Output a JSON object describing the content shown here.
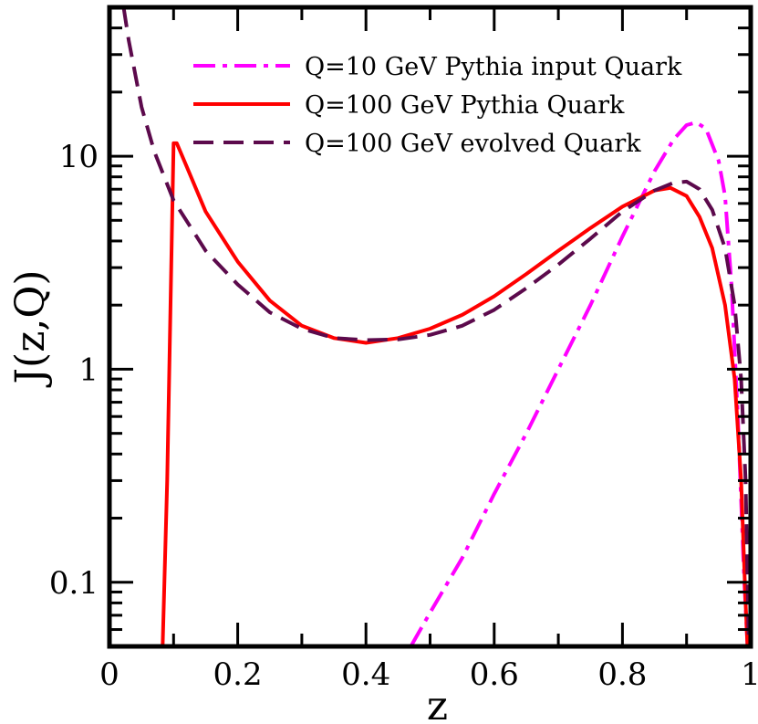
{
  "chart_data": {
    "type": "line",
    "title": "",
    "xlabel": "z",
    "ylabel": "J(z,Q)",
    "xlim": [
      0,
      1
    ],
    "ylim": [
      0.05,
      50
    ],
    "yscale": "log",
    "grid": false,
    "legend_position": "top-right",
    "x_ticks": [
      0,
      0.2,
      0.4,
      0.6,
      0.8,
      1
    ],
    "x_tick_labels": [
      "0",
      "0.2",
      "0.4",
      "0.6",
      "0.8",
      "1"
    ],
    "y_ticks": [
      0.1,
      1,
      10
    ],
    "y_tick_labels": [
      "0.1",
      "1",
      "10"
    ],
    "series": [
      {
        "name": "Q=10 GeV Pythia input Quark",
        "color": "#ff00ff",
        "style": "dashdot",
        "points": [
          [
            0.47,
            0.05
          ],
          [
            0.5,
            0.072
          ],
          [
            0.55,
            0.13
          ],
          [
            0.6,
            0.26
          ],
          [
            0.65,
            0.5
          ],
          [
            0.7,
            1.0
          ],
          [
            0.75,
            2.0
          ],
          [
            0.8,
            4.2
          ],
          [
            0.85,
            8.5
          ],
          [
            0.88,
            12
          ],
          [
            0.9,
            14
          ],
          [
            0.915,
            14.4
          ],
          [
            0.93,
            13.5
          ],
          [
            0.95,
            9.5
          ],
          [
            0.96,
            6.5
          ],
          [
            0.97,
            2.5
          ],
          [
            0.98,
            0.6
          ],
          [
            0.99,
            0.1
          ],
          [
            0.995,
            0.05
          ]
        ]
      },
      {
        "name": "Q=100 GeV Pythia Quark",
        "color": "#ff0000",
        "style": "solid",
        "points": [
          [
            0.083,
            0.05
          ],
          [
            0.09,
            0.3
          ],
          [
            0.1,
            11.5
          ],
          [
            0.105,
            11.5
          ],
          [
            0.12,
            9
          ],
          [
            0.15,
            5.5
          ],
          [
            0.2,
            3.2
          ],
          [
            0.25,
            2.1
          ],
          [
            0.3,
            1.6
          ],
          [
            0.35,
            1.4
          ],
          [
            0.4,
            1.33
          ],
          [
            0.45,
            1.4
          ],
          [
            0.5,
            1.55
          ],
          [
            0.55,
            1.8
          ],
          [
            0.6,
            2.2
          ],
          [
            0.65,
            2.8
          ],
          [
            0.7,
            3.6
          ],
          [
            0.75,
            4.6
          ],
          [
            0.8,
            5.8
          ],
          [
            0.85,
            6.9
          ],
          [
            0.875,
            7.1
          ],
          [
            0.9,
            6.5
          ],
          [
            0.92,
            5.2
          ],
          [
            0.94,
            3.7
          ],
          [
            0.96,
            2.0
          ],
          [
            0.975,
            0.9
          ],
          [
            0.985,
            0.3
          ],
          [
            0.992,
            0.08
          ],
          [
            0.995,
            0.05
          ]
        ]
      },
      {
        "name": "Q=100 GeV evolved Quark",
        "color": "#5c0a4c",
        "style": "dashed",
        "points": [
          [
            0.022,
            50
          ],
          [
            0.03,
            35
          ],
          [
            0.05,
            17
          ],
          [
            0.07,
            10.5
          ],
          [
            0.1,
            6.2
          ],
          [
            0.15,
            3.6
          ],
          [
            0.2,
            2.5
          ],
          [
            0.25,
            1.85
          ],
          [
            0.3,
            1.55
          ],
          [
            0.35,
            1.4
          ],
          [
            0.4,
            1.37
          ],
          [
            0.45,
            1.38
          ],
          [
            0.5,
            1.45
          ],
          [
            0.55,
            1.6
          ],
          [
            0.6,
            1.9
          ],
          [
            0.65,
            2.4
          ],
          [
            0.7,
            3.1
          ],
          [
            0.75,
            4.1
          ],
          [
            0.8,
            5.5
          ],
          [
            0.85,
            6.9
          ],
          [
            0.88,
            7.5
          ],
          [
            0.9,
            7.6
          ],
          [
            0.92,
            7.0
          ],
          [
            0.94,
            5.6
          ],
          [
            0.96,
            3.7
          ],
          [
            0.975,
            2.0
          ],
          [
            0.985,
            0.9
          ],
          [
            0.992,
            0.3
          ],
          [
            0.997,
            0.05
          ]
        ]
      }
    ]
  }
}
